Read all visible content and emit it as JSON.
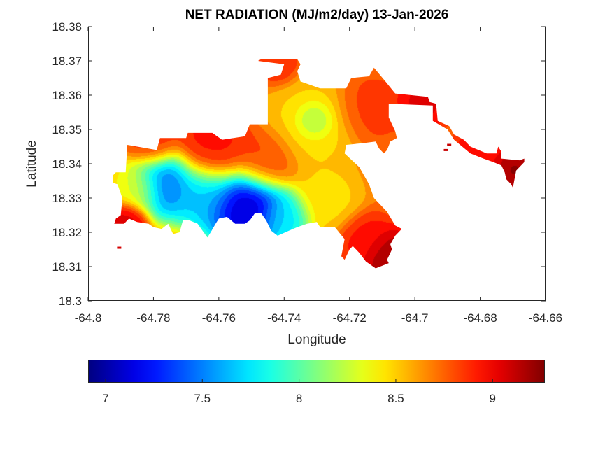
{
  "chart_data": {
    "type": "heatmap",
    "subtype": "filled-contour-map",
    "title": "NET RADIATION (MJ/m2/day) 13-Jan-2026",
    "xlabel": "Longitude",
    "ylabel": "Latitude",
    "xlim": [
      -64.8,
      -64.66
    ],
    "ylim": [
      18.3,
      18.38
    ],
    "xticks": [
      -64.8,
      -64.78,
      -64.76,
      -64.74,
      -64.72,
      -64.7,
      -64.68,
      -64.66
    ],
    "xtick_labels": [
      "-64.8",
      "-64.78",
      "-64.76",
      "-64.74",
      "-64.72",
      "-64.7",
      "-64.68",
      "-64.66"
    ],
    "yticks": [
      18.3,
      18.31,
      18.32,
      18.33,
      18.34,
      18.35,
      18.36,
      18.37,
      18.38
    ],
    "ytick_labels": [
      "18.3",
      "18.31",
      "18.32",
      "18.33",
      "18.34",
      "18.35",
      "18.36",
      "18.37",
      "18.38"
    ],
    "grid": false,
    "colormap": "jet",
    "colorbar": {
      "location": "bottom",
      "clim": [
        6.91,
        9.27
      ],
      "ticks": [
        7,
        7.5,
        8,
        8.5,
        9
      ],
      "tick_labels": [
        "7",
        "7.5",
        "8",
        "8.5",
        "9"
      ]
    },
    "region_outline": [
      [
        -64.7925,
        18.3365
      ],
      [
        -64.7915,
        18.3375
      ],
      [
        -64.7885,
        18.3375
      ],
      [
        -64.788,
        18.3455
      ],
      [
        -64.779,
        18.344
      ],
      [
        -64.778,
        18.3475
      ],
      [
        -64.77,
        18.3475
      ],
      [
        -64.7695,
        18.349
      ],
      [
        -64.762,
        18.349
      ],
      [
        -64.759,
        18.347
      ],
      [
        -64.752,
        18.348
      ],
      [
        -64.7505,
        18.3515
      ],
      [
        -64.745,
        18.3515
      ],
      [
        -64.745,
        18.365
      ],
      [
        -64.741,
        18.366
      ],
      [
        -64.74,
        18.369
      ],
      [
        -64.748,
        18.37
      ],
      [
        -64.747,
        18.3705
      ],
      [
        -64.736,
        18.3705
      ],
      [
        -64.735,
        18.369
      ],
      [
        -64.736,
        18.367
      ],
      [
        -64.735,
        18.364
      ],
      [
        -64.729,
        18.362
      ],
      [
        -64.721,
        18.362
      ],
      [
        -64.7195,
        18.365
      ],
      [
        -64.714,
        18.3655
      ],
      [
        -64.7125,
        18.368
      ],
      [
        -64.709,
        18.364
      ],
      [
        -64.706,
        18.3605
      ],
      [
        -64.696,
        18.3595
      ],
      [
        -64.6955,
        18.358
      ],
      [
        -64.6935,
        18.3575
      ],
      [
        -64.693,
        18.3525
      ],
      [
        -64.6895,
        18.351
      ],
      [
        -64.688,
        18.3485
      ],
      [
        -64.685,
        18.347
      ],
      [
        -64.683,
        18.345
      ],
      [
        -64.678,
        18.343
      ],
      [
        -64.675,
        18.343
      ],
      [
        -64.6745,
        18.345
      ],
      [
        -64.6735,
        18.3435
      ],
      [
        -64.6735,
        18.3415
      ],
      [
        -64.668,
        18.341
      ],
      [
        -64.6665,
        18.3415
      ],
      [
        -64.6665,
        18.3405
      ],
      [
        -64.669,
        18.338
      ],
      [
        -64.67,
        18.333
      ],
      [
        -64.6705,
        18.334
      ],
      [
        -64.672,
        18.3355
      ],
      [
        -64.6725,
        18.3375
      ],
      [
        -64.6735,
        18.3395
      ],
      [
        -64.676,
        18.3405
      ],
      [
        -64.679,
        18.3415
      ],
      [
        -64.683,
        18.343
      ],
      [
        -64.688,
        18.347
      ],
      [
        -64.69,
        18.35
      ],
      [
        -64.6945,
        18.3525
      ],
      [
        -64.6945,
        18.357
      ],
      [
        -64.708,
        18.3575
      ],
      [
        -64.708,
        18.3535
      ],
      [
        -64.706,
        18.3495
      ],
      [
        -64.7055,
        18.3475
      ],
      [
        -64.7075,
        18.3465
      ],
      [
        -64.7085,
        18.344
      ],
      [
        -64.7095,
        18.343
      ],
      [
        -64.711,
        18.3445
      ],
      [
        -64.712,
        18.3465
      ],
      [
        -64.716,
        18.346
      ],
      [
        -64.721,
        18.3455
      ],
      [
        -64.7215,
        18.343
      ],
      [
        -64.717,
        18.339
      ],
      [
        -64.7155,
        18.3365
      ],
      [
        -64.714,
        18.334
      ],
      [
        -64.7125,
        18.33
      ],
      [
        -64.7085,
        18.326
      ],
      [
        -64.706,
        18.322
      ],
      [
        -64.704,
        18.321
      ],
      [
        -64.706,
        18.319
      ],
      [
        -64.7075,
        18.3165
      ],
      [
        -64.707,
        18.315
      ],
      [
        -64.7085,
        18.312
      ],
      [
        -64.708,
        18.311
      ],
      [
        -64.712,
        18.3095
      ],
      [
        -64.715,
        18.3115
      ],
      [
        -64.717,
        18.314
      ],
      [
        -64.719,
        18.316
      ],
      [
        -64.72,
        18.315
      ],
      [
        -64.7215,
        18.312
      ],
      [
        -64.7225,
        18.313
      ],
      [
        -64.7215,
        18.318
      ],
      [
        -64.7245,
        18.3215
      ],
      [
        -64.729,
        18.3215
      ],
      [
        -64.73,
        18.323
      ],
      [
        -64.733,
        18.3225
      ],
      [
        -64.736,
        18.3215
      ],
      [
        -64.7385,
        18.3205
      ],
      [
        -64.742,
        18.319
      ],
      [
        -64.744,
        18.3205
      ],
      [
        -64.7455,
        18.3235
      ],
      [
        -64.747,
        18.3255
      ],
      [
        -64.749,
        18.3255
      ],
      [
        -64.7505,
        18.3235
      ],
      [
        -64.752,
        18.3225
      ],
      [
        -64.755,
        18.3225
      ],
      [
        -64.7575,
        18.3245
      ],
      [
        -64.76,
        18.324
      ],
      [
        -64.761,
        18.3225
      ],
      [
        -64.7625,
        18.32
      ],
      [
        -64.7635,
        18.3185
      ],
      [
        -64.765,
        18.3205
      ],
      [
        -64.7665,
        18.3225
      ],
      [
        -64.769,
        18.3235
      ],
      [
        -64.771,
        18.3235
      ],
      [
        -64.772,
        18.32
      ],
      [
        -64.774,
        18.3195
      ],
      [
        -64.7755,
        18.3225
      ],
      [
        -64.7775,
        18.321
      ],
      [
        -64.78,
        18.3215
      ],
      [
        -64.7815,
        18.3225
      ],
      [
        -64.785,
        18.323
      ],
      [
        -64.7875,
        18.324
      ],
      [
        -64.789,
        18.3225
      ],
      [
        -64.792,
        18.3225
      ],
      [
        -64.7915,
        18.324
      ],
      [
        -64.79,
        18.325
      ],
      [
        -64.7895,
        18.33
      ],
      [
        -64.791,
        18.334
      ],
      [
        -64.7925,
        18.3345
      ]
    ],
    "value_field_blobs": [
      {
        "lon": -64.752,
        "lat": 18.3275,
        "value": 6.95,
        "spread": 0.006,
        "note": "minimum (dark blue)"
      },
      {
        "lon": -64.7765,
        "lat": 18.3345,
        "value": 7.35,
        "spread": 0.005
      },
      {
        "lon": -64.765,
        "lat": 18.331,
        "value": 7.6,
        "spread": 0.005
      },
      {
        "lon": -64.74,
        "lat": 18.3245,
        "value": 7.7,
        "spread": 0.004
      },
      {
        "lon": -64.785,
        "lat": 18.333,
        "value": 8.35,
        "spread": 0.004
      },
      {
        "lon": -64.731,
        "lat": 18.3525,
        "value": 7.95,
        "spread": 0.003
      },
      {
        "lon": -64.732,
        "lat": 18.351,
        "value": 8.45,
        "spread": 0.007
      },
      {
        "lon": -64.727,
        "lat": 18.33,
        "value": 8.45,
        "spread": 0.005
      },
      {
        "lon": -64.762,
        "lat": 18.344,
        "value": 8.95,
        "spread": 0.006
      },
      {
        "lon": -64.746,
        "lat": 18.341,
        "value": 8.85,
        "spread": 0.005
      },
      {
        "lon": -64.714,
        "lat": 18.356,
        "value": 8.85,
        "spread": 0.005
      },
      {
        "lon": -64.708,
        "lat": 18.313,
        "value": 9.25,
        "spread": 0.004
      },
      {
        "lon": -64.715,
        "lat": 18.318,
        "value": 8.95,
        "spread": 0.004
      },
      {
        "lon": -64.67,
        "lat": 18.3385,
        "value": 9.25,
        "spread": 0.003
      },
      {
        "lon": -64.68,
        "lat": 18.343,
        "value": 9.0,
        "spread": 0.004
      },
      {
        "lon": -64.698,
        "lat": 18.358,
        "value": 9.05,
        "spread": 0.004
      },
      {
        "lon": -64.788,
        "lat": 18.3235,
        "value": 9.1,
        "spread": 0.003
      },
      {
        "lon": -64.78,
        "lat": 18.346,
        "value": 8.9,
        "spread": 0.004
      },
      {
        "lon": -64.742,
        "lat": 18.369,
        "value": 8.9,
        "spread": 0.003
      }
    ],
    "background_value": 8.7
  }
}
